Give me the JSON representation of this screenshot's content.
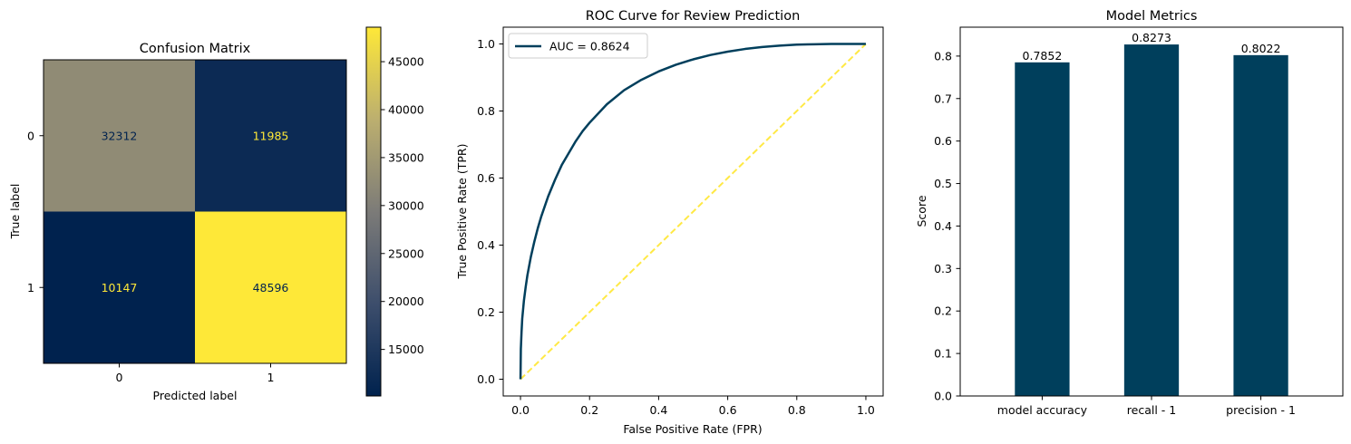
{
  "chart_data": [
    {
      "type": "heatmap",
      "title": "Confusion Matrix",
      "xlabel": "Predicted label",
      "ylabel": "True label",
      "x_ticks": [
        "0",
        "1"
      ],
      "y_ticks": [
        "0",
        "1"
      ],
      "cells": [
        {
          "row": 0,
          "col": 0,
          "value": 32312
        },
        {
          "row": 0,
          "col": 1,
          "value": 11985
        },
        {
          "row": 1,
          "col": 0,
          "value": 10147
        },
        {
          "row": 1,
          "col": 1,
          "value": 48596
        }
      ],
      "colormap": "cividis",
      "colorbar_ticks": [
        15000,
        20000,
        25000,
        30000,
        35000,
        40000,
        45000
      ],
      "colorbar_range": [
        10147,
        48596
      ]
    },
    {
      "type": "line",
      "title": "ROC Curve for Review Prediction",
      "xlabel": "False Positive Rate (FPR)",
      "ylabel": "True Positive Rate (TPR)",
      "xlim": [
        -0.05,
        1.05
      ],
      "ylim": [
        -0.05,
        1.05
      ],
      "x_ticks": [
        0.0,
        0.2,
        0.4,
        0.6,
        0.8,
        1.0
      ],
      "y_ticks": [
        0.0,
        0.2,
        0.4,
        0.6,
        0.8,
        1.0
      ],
      "legend_position": "top-left",
      "series": [
        {
          "name": "AUC = 0.8624",
          "color": "#003f5c",
          "x": [
            0,
            0.001,
            0.003,
            0.005,
            0.01,
            0.015,
            0.02,
            0.03,
            0.04,
            0.05,
            0.06,
            0.07,
            0.08,
            0.1,
            0.12,
            0.14,
            0.16,
            0.18,
            0.2,
            0.25,
            0.3,
            0.35,
            0.4,
            0.45,
            0.5,
            0.55,
            0.6,
            0.65,
            0.7,
            0.75,
            0.8,
            0.85,
            0.9,
            0.95,
            1.0
          ],
          "y": [
            0,
            0.09,
            0.14,
            0.18,
            0.235,
            0.275,
            0.31,
            0.365,
            0.41,
            0.45,
            0.485,
            0.515,
            0.545,
            0.595,
            0.64,
            0.675,
            0.71,
            0.74,
            0.765,
            0.82,
            0.862,
            0.893,
            0.918,
            0.938,
            0.954,
            0.967,
            0.977,
            0.985,
            0.991,
            0.995,
            0.998,
            0.999,
            1.0,
            1.0,
            1.0
          ]
        },
        {
          "name": "",
          "color": "#ffe945",
          "style": "dashed",
          "x": [
            0,
            1
          ],
          "y": [
            0,
            1
          ]
        }
      ]
    },
    {
      "type": "bar",
      "title": "Model Metrics",
      "xlabel": "",
      "ylabel": "Score",
      "categories": [
        "model accuracy",
        "recall - 1",
        "precision - 1"
      ],
      "values": [
        0.7852,
        0.8273,
        0.8022
      ],
      "value_labels": [
        "0.7852",
        "0.8273",
        "0.8022"
      ],
      "ylim": [
        0,
        0.868
      ],
      "y_ticks": [
        0.0,
        0.1,
        0.2,
        0.3,
        0.4,
        0.5,
        0.6,
        0.7,
        0.8
      ],
      "color": "#003f5c"
    }
  ]
}
